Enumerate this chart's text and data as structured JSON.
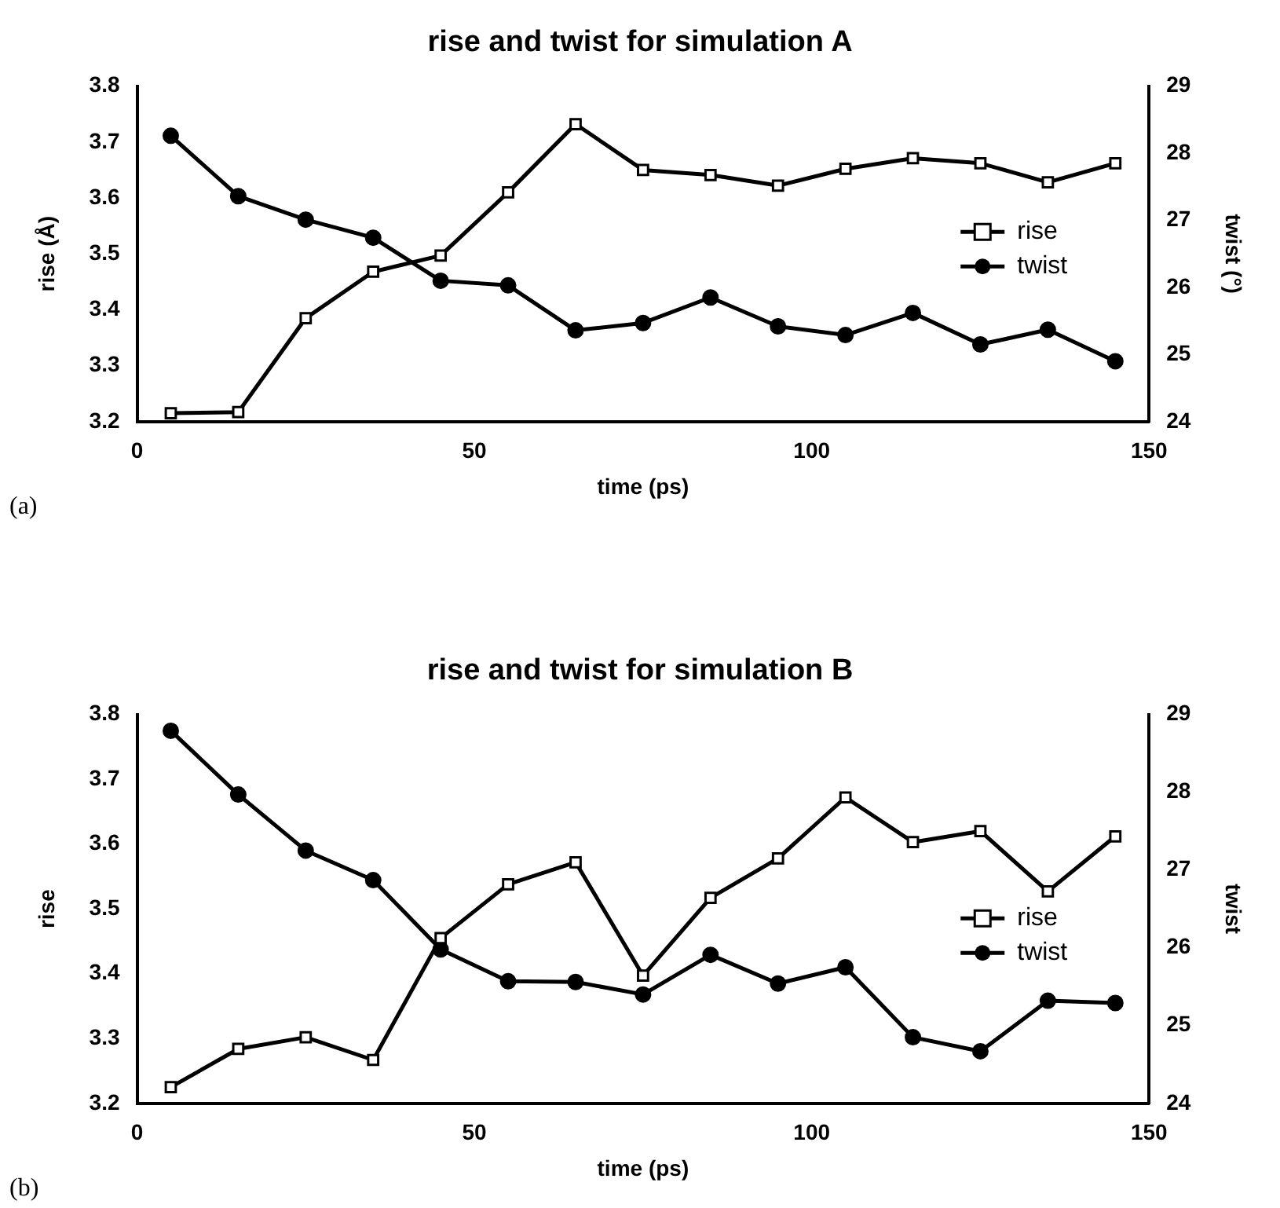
{
  "chart_data": [
    {
      "type": "line",
      "title": "rise and twist for simulation A",
      "xlabel": "time (ps)",
      "ylabel": "rise (Å)",
      "y2label": "twist (°)",
      "annotations": [
        "(a)"
      ],
      "x": [
        5,
        15,
        25,
        35,
        45,
        55,
        65,
        75,
        85,
        95,
        105,
        115,
        125,
        135,
        145
      ],
      "series": [
        {
          "name": "rise",
          "color": "#000000",
          "marker": "square",
          "values": [
            3.215,
            3.217,
            3.385,
            3.468,
            3.497,
            3.61,
            3.732,
            3.65,
            3.641,
            3.622,
            3.652,
            3.671,
            3.662,
            3.628,
            3.662
          ]
        },
        {
          "name": "twist",
          "color": "#000000",
          "marker": "circle",
          "axis": "y2",
          "values": [
            28.26,
            27.36,
            27.01,
            26.74,
            26.1,
            26.03,
            25.36,
            25.47,
            25.85,
            25.42,
            25.29,
            25.62,
            25.15,
            25.37,
            24.9
          ]
        }
      ],
      "xlim": [
        0,
        150
      ],
      "xticks": [
        0,
        50,
        100,
        150
      ],
      "ylim": [
        3.2,
        3.8
      ],
      "yticks": [
        3.2,
        3.3,
        3.4,
        3.5,
        3.6,
        3.7,
        3.8
      ],
      "y2lim": [
        24,
        29
      ],
      "y2ticks": [
        24,
        25,
        26,
        27,
        28,
        29
      ],
      "grid": false,
      "legend": "right"
    },
    {
      "type": "line",
      "title": "rise and twist for simulation B",
      "xlabel": "time (ps)",
      "ylabel": "rise",
      "y2label": "twist",
      "annotations": [
        "(b)"
      ],
      "x": [
        5,
        15,
        25,
        35,
        45,
        55,
        65,
        75,
        85,
        95,
        105,
        115,
        125,
        135,
        145
      ],
      "series": [
        {
          "name": "rise",
          "color": "#000000",
          "marker": "square",
          "values": [
            3.225,
            3.284,
            3.302,
            3.267,
            3.455,
            3.538,
            3.572,
            3.397,
            3.517,
            3.578,
            3.672,
            3.603,
            3.62,
            3.527,
            3.612
          ]
        },
        {
          "name": "twist",
          "color": "#000000",
          "marker": "circle",
          "axis": "y2",
          "values": [
            28.79,
            27.97,
            27.25,
            26.87,
            25.98,
            25.57,
            25.56,
            25.4,
            25.91,
            25.54,
            25.75,
            24.85,
            24.67,
            25.32,
            25.29
          ]
        }
      ],
      "xlim": [
        0,
        150
      ],
      "xticks": [
        0,
        50,
        100,
        150
      ],
      "ylim": [
        3.2,
        3.8
      ],
      "yticks": [
        3.2,
        3.3,
        3.4,
        3.5,
        3.6,
        3.7,
        3.8
      ],
      "y2lim": [
        24,
        29
      ],
      "y2ticks": [
        24,
        25,
        26,
        27,
        28,
        29
      ],
      "grid": false,
      "legend": "right"
    }
  ]
}
